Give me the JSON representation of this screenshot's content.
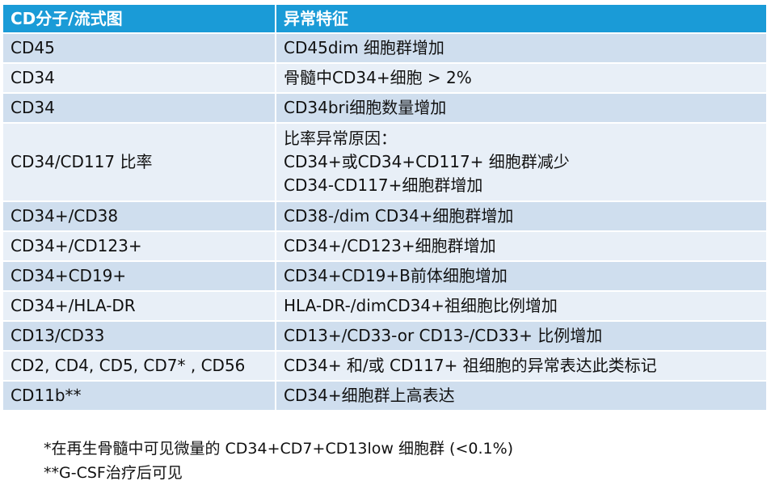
{
  "table": {
    "header": [
      "CD分子/流式图",
      "异常特征"
    ],
    "rows": [
      [
        "CD45",
        "CD45dim 细胞群增加"
      ],
      [
        "CD34",
        "骨髓中CD34+细胞 > 2%"
      ],
      [
        "CD34",
        "CD34bri细胞数量增加"
      ],
      [
        "CD34/CD117 比率",
        [
          "比率异常原因：",
          "CD34+或CD34+CD117+ 细胞群减少",
          "CD34-CD117+细胞群增加"
        ]
      ],
      [
        "CD34+/CD38",
        "CD38-/dim CD34+细胞群增加"
      ],
      [
        "CD34+/CD123+",
        "CD34+/CD123+细胞群增加"
      ],
      [
        "CD34+CD19+",
        "CD34+CD19+B前体细胞增加"
      ],
      [
        "CD34+/HLA-DR",
        "HLA-DR-/dimCD34+祖细胞比例增加"
      ],
      [
        "CD13/CD33",
        "CD13+/CD33-or CD13-/CD33+ 比例增加"
      ],
      [
        "CD2, CD4, CD5, CD7* , CD56",
        "CD34+ 和/或 CD117+ 祖细胞的异常表达此类标记"
      ],
      [
        "CD11b**",
        "CD34+细胞群上高表达"
      ]
    ]
  },
  "footnotes": [
    "*在再生骨髓中可见微量的 CD34+CD7+CD13low 细胞群 (<0.1%)",
    "**G-CSF治疗后可见"
  ]
}
